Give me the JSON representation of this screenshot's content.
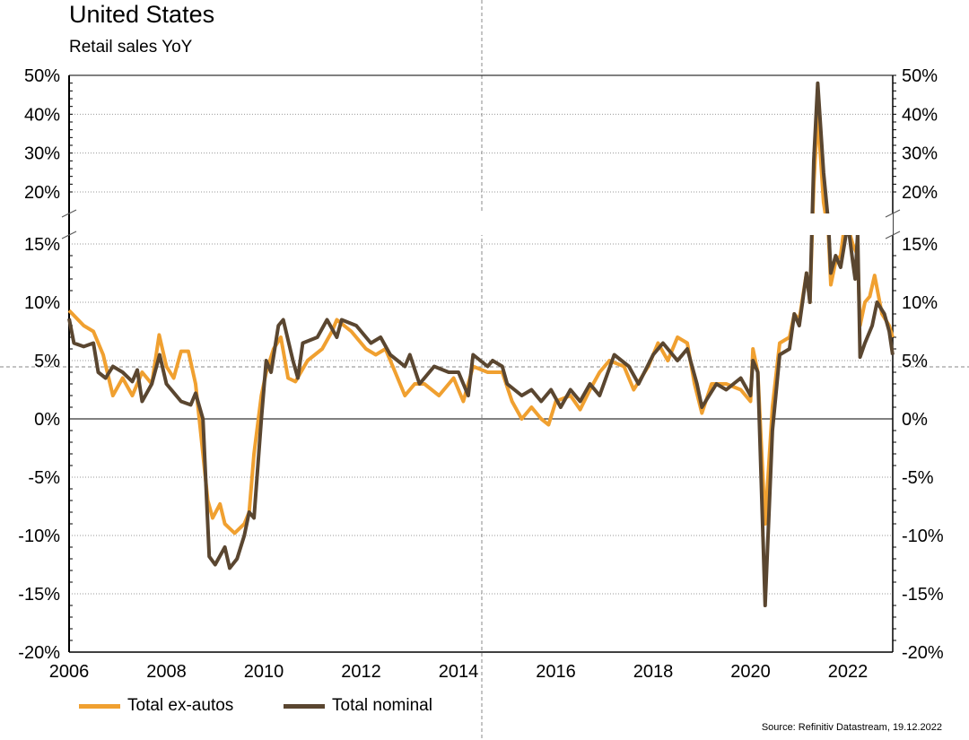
{
  "title": "United States",
  "subtitle": "Retail sales YoY",
  "source": "Source: Refinitiv Datastream, 19.12.2022",
  "colors": {
    "ex_autos": "#f0a030",
    "nominal": "#5a4630"
  },
  "chart_data": {
    "type": "line",
    "title": "United States",
    "subtitle": "Retail sales YoY",
    "xlabel": "",
    "ylabel": "",
    "xlim": [
      2006,
      2022.92
    ],
    "ylim": [
      -20,
      50
    ],
    "y_axis_break": [
      15,
      20
    ],
    "grid": true,
    "legend_position": "bottom-left",
    "x_ticks": [
      "2006",
      "2008",
      "2010",
      "2012",
      "2014",
      "2016",
      "2018",
      "2020",
      "2022"
    ],
    "y_ticks_lower": [
      "15%",
      "10%",
      "5%",
      "0%",
      "-5%",
      "-10%",
      "-15%",
      "-20%"
    ],
    "y_ticks_upper": [
      "50%",
      "40%",
      "30%",
      "20%"
    ],
    "series": [
      {
        "name": "Total ex-autos",
        "color": "#f0a030",
        "x": [
          2006.0,
          2006.3,
          2006.5,
          2006.7,
          2006.9,
          2007.1,
          2007.3,
          2007.5,
          2007.7,
          2007.85,
          2008.0,
          2008.15,
          2008.3,
          2008.45,
          2008.6,
          2008.75,
          2008.85,
          2008.95,
          2009.1,
          2009.2,
          2009.4,
          2009.6,
          2009.7,
          2009.8,
          2009.95,
          2010.05,
          2010.2,
          2010.35,
          2010.5,
          2010.65,
          2010.9,
          2011.2,
          2011.4,
          2011.5,
          2011.8,
          2012.1,
          2012.3,
          2012.5,
          2012.7,
          2012.9,
          2013.1,
          2013.3,
          2013.6,
          2013.9,
          2014.1,
          2014.3,
          2014.6,
          2014.9,
          2015.1,
          2015.3,
          2015.5,
          2015.7,
          2015.85,
          2016.0,
          2016.3,
          2016.5,
          2016.7,
          2016.9,
          2017.1,
          2017.4,
          2017.6,
          2017.9,
          2018.1,
          2018.3,
          2018.5,
          2018.7,
          2018.85,
          2019.0,
          2019.2,
          2019.5,
          2019.8,
          2020.0,
          2020.05,
          2020.15,
          2020.3,
          2020.45,
          2020.6,
          2020.8,
          2020.9,
          2021.0,
          2021.15,
          2021.22,
          2021.3,
          2021.38,
          2021.5,
          2021.6,
          2021.65,
          2021.75,
          2021.85,
          2021.95,
          2022.1,
          2022.2,
          2022.25,
          2022.35,
          2022.45,
          2022.55,
          2022.7,
          2022.85,
          2022.92
        ],
        "values": [
          9.3,
          8,
          7.5,
          5.5,
          2,
          3.5,
          2,
          4,
          3,
          7.2,
          4.5,
          3.5,
          5.8,
          5.8,
          3,
          -3,
          -7,
          -8.5,
          -7.3,
          -9,
          -9.8,
          -9,
          -8,
          -3,
          2,
          4,
          6,
          7,
          3.5,
          3.2,
          5,
          6,
          7.5,
          8.5,
          7.5,
          6,
          5.5,
          6,
          4,
          2,
          3,
          3,
          2,
          3.5,
          1.5,
          4.5,
          4,
          4,
          1.5,
          0,
          1,
          0,
          -0.5,
          1.5,
          2,
          0.8,
          2.5,
          4,
          5,
          4.5,
          2.5,
          4.5,
          6.5,
          5,
          7,
          6.5,
          3,
          0.5,
          3,
          3,
          2.5,
          1.5,
          6,
          4,
          -9,
          1,
          6.5,
          7,
          9,
          8.5,
          12.5,
          10,
          22,
          40,
          19,
          16,
          11.5,
          13.5,
          14,
          17.5,
          15,
          14,
          8,
          10,
          10.5,
          12.3,
          9,
          8,
          7
        ]
      },
      {
        "name": "Total nominal",
        "color": "#5a4630",
        "x": [
          2006.0,
          2006.1,
          2006.3,
          2006.5,
          2006.6,
          2006.75,
          2006.9,
          2007.1,
          2007.3,
          2007.4,
          2007.5,
          2007.7,
          2007.86,
          2008.0,
          2008.3,
          2008.5,
          2008.6,
          2008.75,
          2008.88,
          2009.0,
          2009.2,
          2009.3,
          2009.45,
          2009.6,
          2009.7,
          2009.8,
          2009.95,
          2010.05,
          2010.15,
          2010.3,
          2010.4,
          2010.6,
          2010.7,
          2010.8,
          2011.1,
          2011.3,
          2011.5,
          2011.6,
          2011.9,
          2012.2,
          2012.4,
          2012.6,
          2012.9,
          2013.0,
          2013.2,
          2013.5,
          2013.8,
          2014.0,
          2014.2,
          2014.3,
          2014.6,
          2014.7,
          2014.9,
          2015.0,
          2015.3,
          2015.5,
          2015.7,
          2015.9,
          2016.1,
          2016.3,
          2016.5,
          2016.7,
          2016.9,
          2017.2,
          2017.5,
          2017.7,
          2018.0,
          2018.2,
          2018.5,
          2018.7,
          2018.9,
          2019.0,
          2019.3,
          2019.5,
          2019.8,
          2020.0,
          2020.05,
          2020.15,
          2020.3,
          2020.45,
          2020.6,
          2020.8,
          2020.9,
          2021.0,
          2021.15,
          2021.22,
          2021.3,
          2021.38,
          2021.5,
          2021.6,
          2021.65,
          2021.75,
          2021.85,
          2022.0,
          2022.1,
          2022.15,
          2022.2,
          2022.25,
          2022.35,
          2022.5,
          2022.6,
          2022.75,
          2022.85,
          2022.92
        ],
        "values": [
          8.6,
          6.5,
          6.2,
          6.5,
          4,
          3.5,
          4.5,
          4,
          3.2,
          4.2,
          1.5,
          3,
          5.5,
          3,
          1.5,
          1.2,
          2.2,
          0,
          -11.8,
          -12.5,
          -11,
          -12.8,
          -12,
          -10,
          -8,
          -8.5,
          0,
          5,
          4,
          8,
          8.5,
          5,
          3.5,
          6.5,
          7,
          8.5,
          7,
          8.5,
          8,
          6.5,
          7,
          5.5,
          4.5,
          5.5,
          3,
          4.5,
          4,
          4,
          2,
          5.5,
          4.5,
          5,
          4.5,
          3,
          2,
          2.5,
          1.5,
          2.5,
          1,
          2.5,
          1.5,
          3,
          2,
          5.5,
          4.5,
          3,
          5.5,
          6.5,
          5,
          6,
          3,
          1,
          3,
          2.5,
          3.5,
          2,
          5,
          4,
          -16,
          -1,
          5.5,
          6,
          9,
          8,
          12.5,
          10,
          28,
          48,
          25,
          17,
          12.5,
          14,
          13,
          17,
          13.5,
          12,
          16,
          5.3,
          6.5,
          8,
          10,
          9,
          7.5,
          5.5
        ]
      }
    ]
  }
}
